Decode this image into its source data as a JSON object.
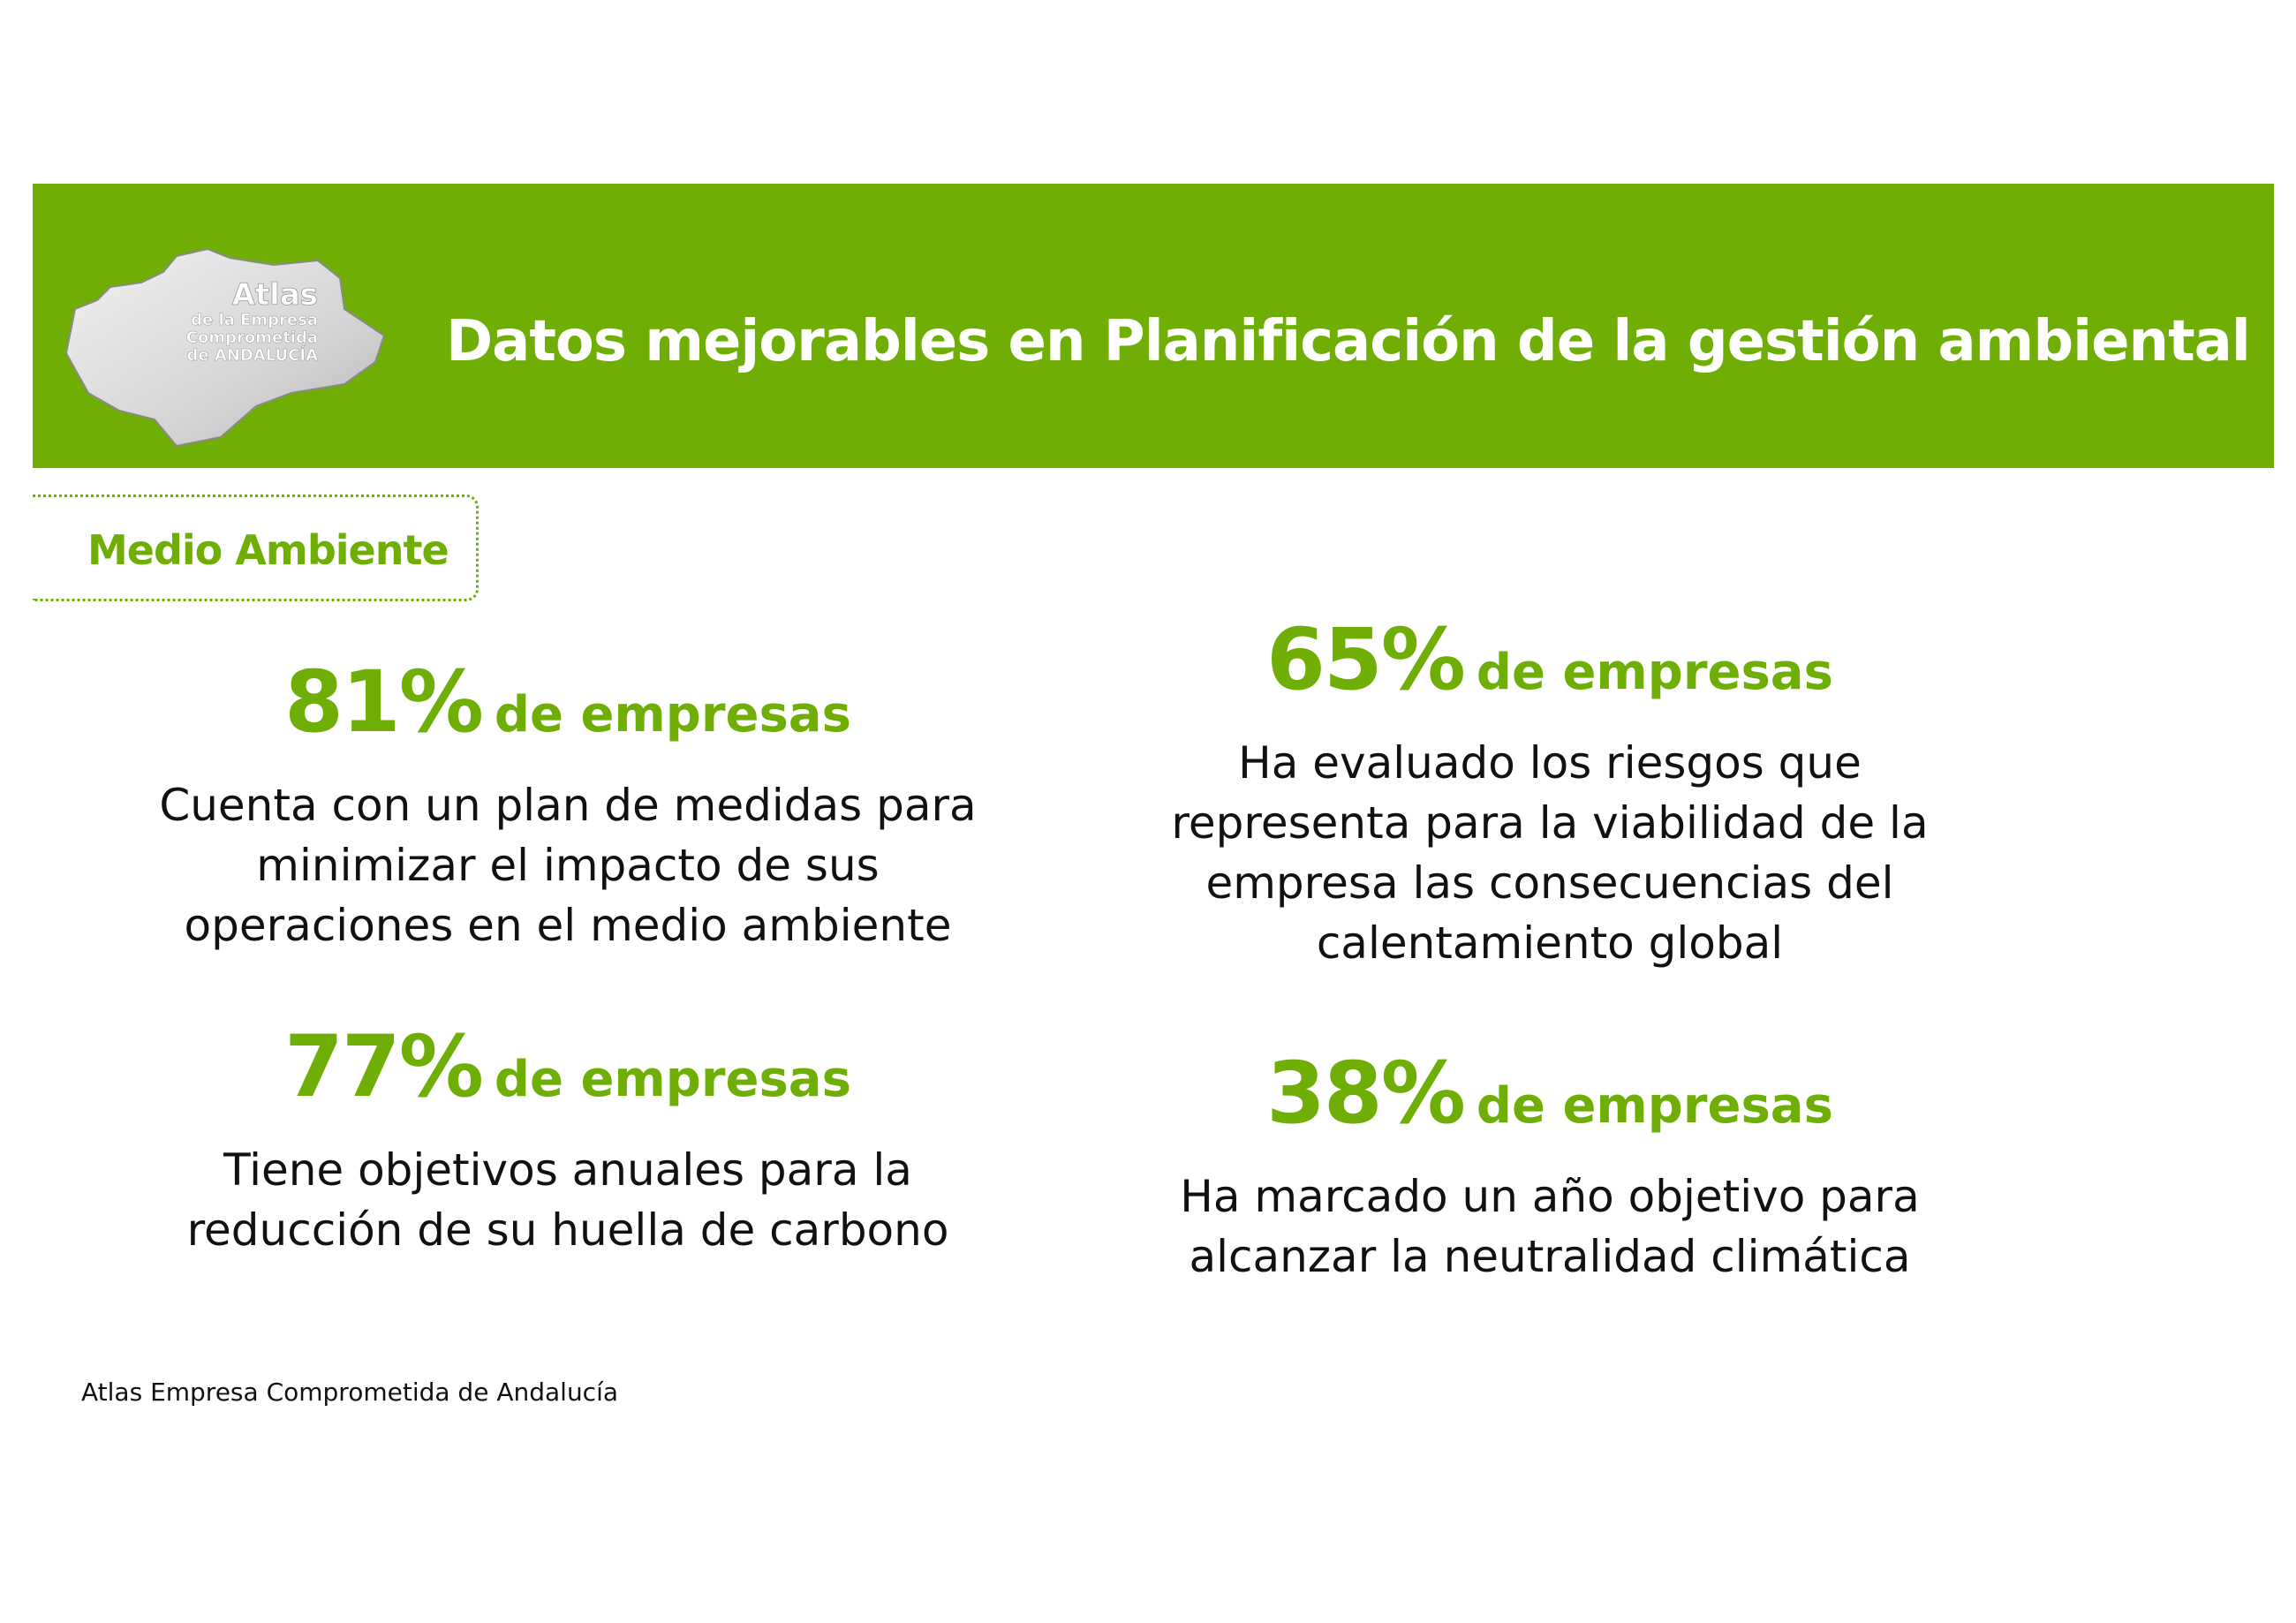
{
  "header": {
    "title": "Datos mejorables en Planificación de la gestión ambiental",
    "logo_text": "Atlas de la Empresa Comprometida de ANDALUCÍA",
    "color": "#6faf05"
  },
  "section": {
    "label": "Medio Ambiente"
  },
  "stats": [
    {
      "value": "81%",
      "unit": "de empresas",
      "lines": [
        "Cuenta con un plan de medidas para",
        "minimizar el impacto de sus",
        "operaciones en el medio ambiente"
      ]
    },
    {
      "value": "65%",
      "unit": "de empresas",
      "lines": [
        "Ha evaluado los riesgos que",
        "representa para la viabilidad de la",
        "empresa las consecuencias del",
        "calentamiento global"
      ]
    },
    {
      "value": "77%",
      "unit": "de empresas",
      "lines": [
        "Tiene objetivos anuales para la",
        "reducción de su huella de carbono"
      ]
    },
    {
      "value": "38%",
      "unit": "de empresas",
      "lines": [
        "Ha marcado un año objetivo para",
        "alcanzar la neutralidad climática"
      ]
    }
  ],
  "footer": {
    "source": "Atlas Empresa Comprometida de Andalucía"
  }
}
